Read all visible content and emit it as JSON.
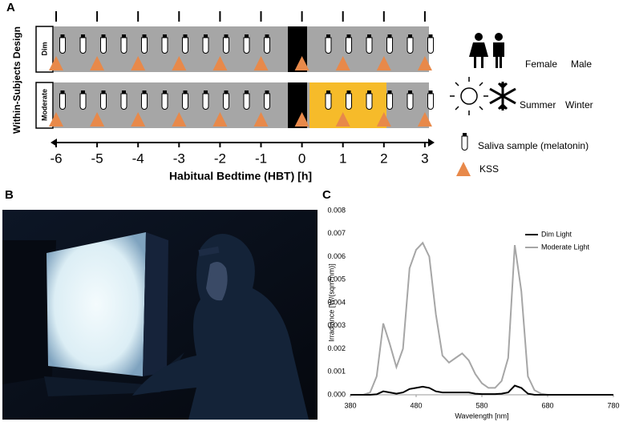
{
  "panel_labels": [
    "A",
    "B",
    "C"
  ],
  "design": {
    "title": "Within-Subjects Design",
    "conditions": [
      "Dim",
      "Moderate"
    ],
    "hbt_ticks": [
      -6,
      -5,
      -4,
      -3,
      -2,
      -1,
      0,
      1,
      2,
      3
    ],
    "axis_label": "Habitual Bedtime (HBT) [h]"
  },
  "legend": {
    "sex": [
      "Female",
      "Male"
    ],
    "season": [
      "Summer",
      "Winter"
    ],
    "saliva": "Saliva sample (melatonin)",
    "kss": "KSS"
  },
  "chart_data": {
    "type": "line",
    "x": [
      380,
      390,
      400,
      410,
      420,
      430,
      440,
      450,
      460,
      470,
      480,
      490,
      500,
      510,
      520,
      530,
      540,
      550,
      560,
      570,
      580,
      590,
      600,
      610,
      620,
      630,
      640,
      650,
      660,
      670,
      680,
      690,
      700,
      710,
      720,
      730,
      740,
      750,
      760,
      770,
      780
    ],
    "series": [
      {
        "name": "Dim Light",
        "color": "#000000",
        "values": [
          0,
          0,
          0,
          0,
          2e-05,
          0.00015,
          0.0001,
          5e-05,
          0.0001,
          0.00025,
          0.0003,
          0.00035,
          0.0003,
          0.00015,
          0.0001,
          0.0001,
          0.0001,
          0.0001,
          0.0001,
          5e-05,
          3e-05,
          3e-05,
          3e-05,
          5e-05,
          0.0001,
          0.0004,
          0.0003,
          5e-05,
          0,
          0,
          0,
          0,
          0,
          0,
          0,
          0,
          0,
          0,
          0,
          0,
          0
        ]
      },
      {
        "name": "Moderate Light",
        "color": "#a6a6a6",
        "values": [
          0,
          0,
          0,
          0.0001,
          0.0008,
          0.0031,
          0.0022,
          0.0012,
          0.002,
          0.0055,
          0.0063,
          0.0066,
          0.006,
          0.0035,
          0.0017,
          0.0014,
          0.0016,
          0.0018,
          0.0015,
          0.0009,
          0.0005,
          0.0003,
          0.0003,
          0.0006,
          0.0016,
          0.0065,
          0.0045,
          0.0008,
          0.0002,
          5e-05,
          0,
          0,
          0,
          0,
          0,
          0,
          0,
          0,
          0,
          0,
          0
        ]
      }
    ],
    "xlabel": "Wavelength [nm]",
    "ylabel": "Irradiance [W/(sqm*nm)]",
    "xlim": [
      380,
      780
    ],
    "ylim": [
      0,
      0.008
    ],
    "xticks": [
      380,
      480,
      580,
      680,
      780
    ],
    "yticks": [
      {
        "value": 0,
        "label": "0.000"
      },
      {
        "value": 0.001,
        "label": "0.001"
      },
      {
        "value": 0.002,
        "label": "0.002"
      },
      {
        "value": 0.003,
        "label": "0.003"
      },
      {
        "value": 0.004,
        "label": "0.004"
      },
      {
        "value": 0.005,
        "label": "0.005"
      },
      {
        "value": 0.006,
        "label": "0.006"
      },
      {
        "value": 0.007,
        "label": "0.007"
      },
      {
        "value": 0.008,
        "label": "0.008"
      }
    ],
    "legend": "upper right"
  }
}
